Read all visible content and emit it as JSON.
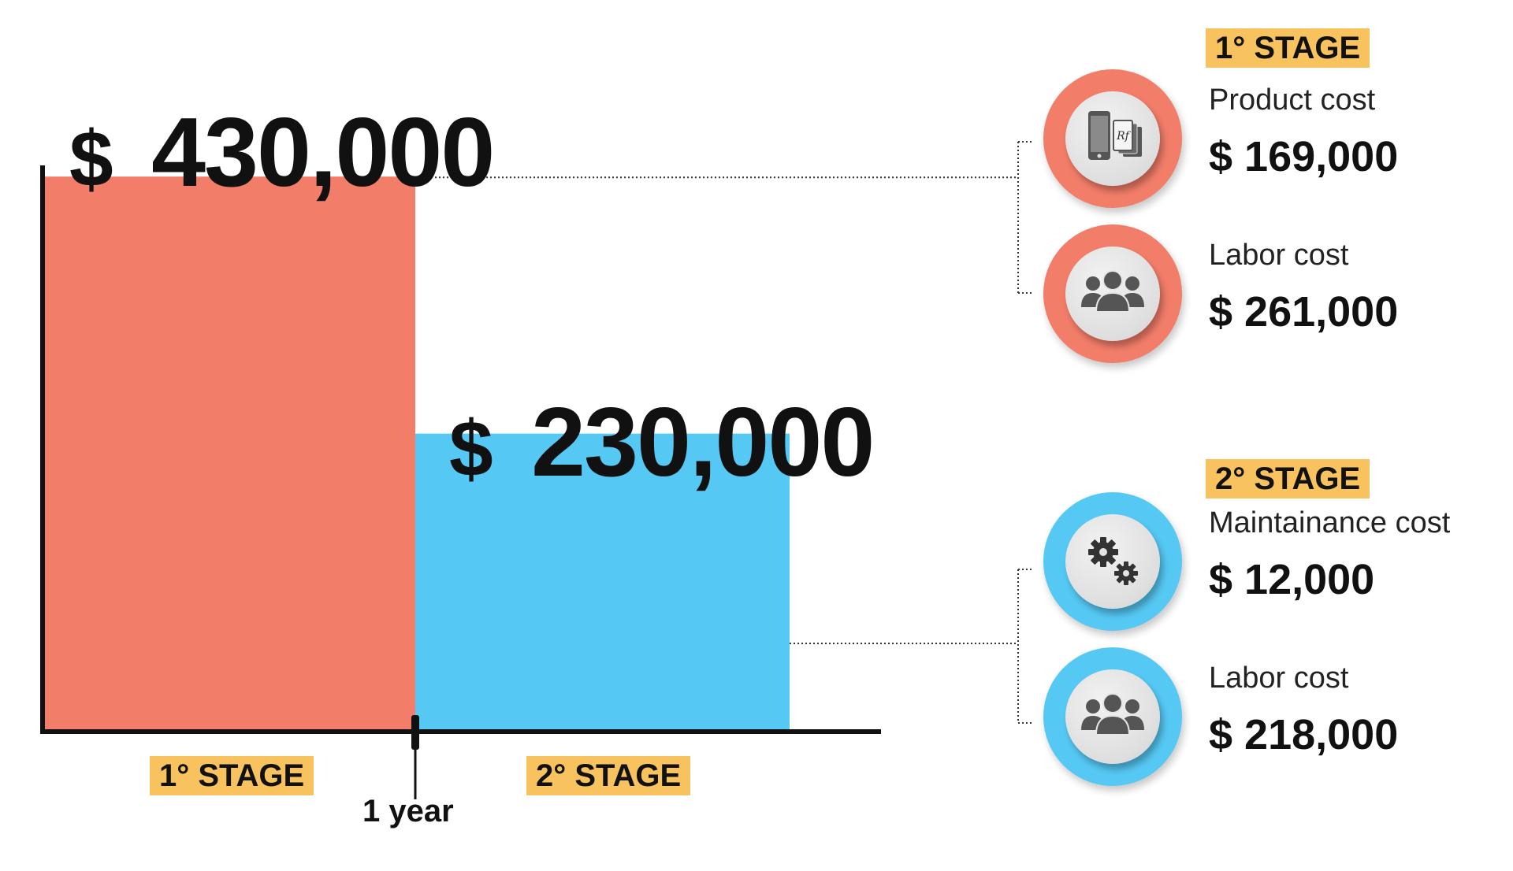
{
  "chart_data": {
    "type": "bar",
    "categories": [
      "1° STAGE",
      "2° STAGE"
    ],
    "values": [
      430000,
      230000
    ],
    "value_labels": [
      "$ 430,000",
      "$ 230,000"
    ],
    "divider_label": "1 year",
    "colors": [
      "#f27d69",
      "#55c8f3"
    ],
    "ylim": [
      0,
      500000
    ],
    "grid": false,
    "breakdown": [
      {
        "stage": "1° STAGE",
        "accent": "#f27d69",
        "items": [
          {
            "label": "Product cost",
            "value": 169000,
            "display": "$ 169,000",
            "icon": "device-and-cards-icon"
          },
          {
            "label": "Labor cost",
            "value": 261000,
            "display": "$ 261,000",
            "icon": "people-group-icon"
          }
        ]
      },
      {
        "stage": "2° STAGE",
        "accent": "#55c8f3",
        "items": [
          {
            "label": "Maintainance cost",
            "value": 12000,
            "display": "$ 12,000",
            "icon": "gears-icon"
          },
          {
            "label": "Labor cost",
            "value": 218000,
            "display": "$ 218,000",
            "icon": "people-group-icon"
          }
        ]
      }
    ]
  }
}
